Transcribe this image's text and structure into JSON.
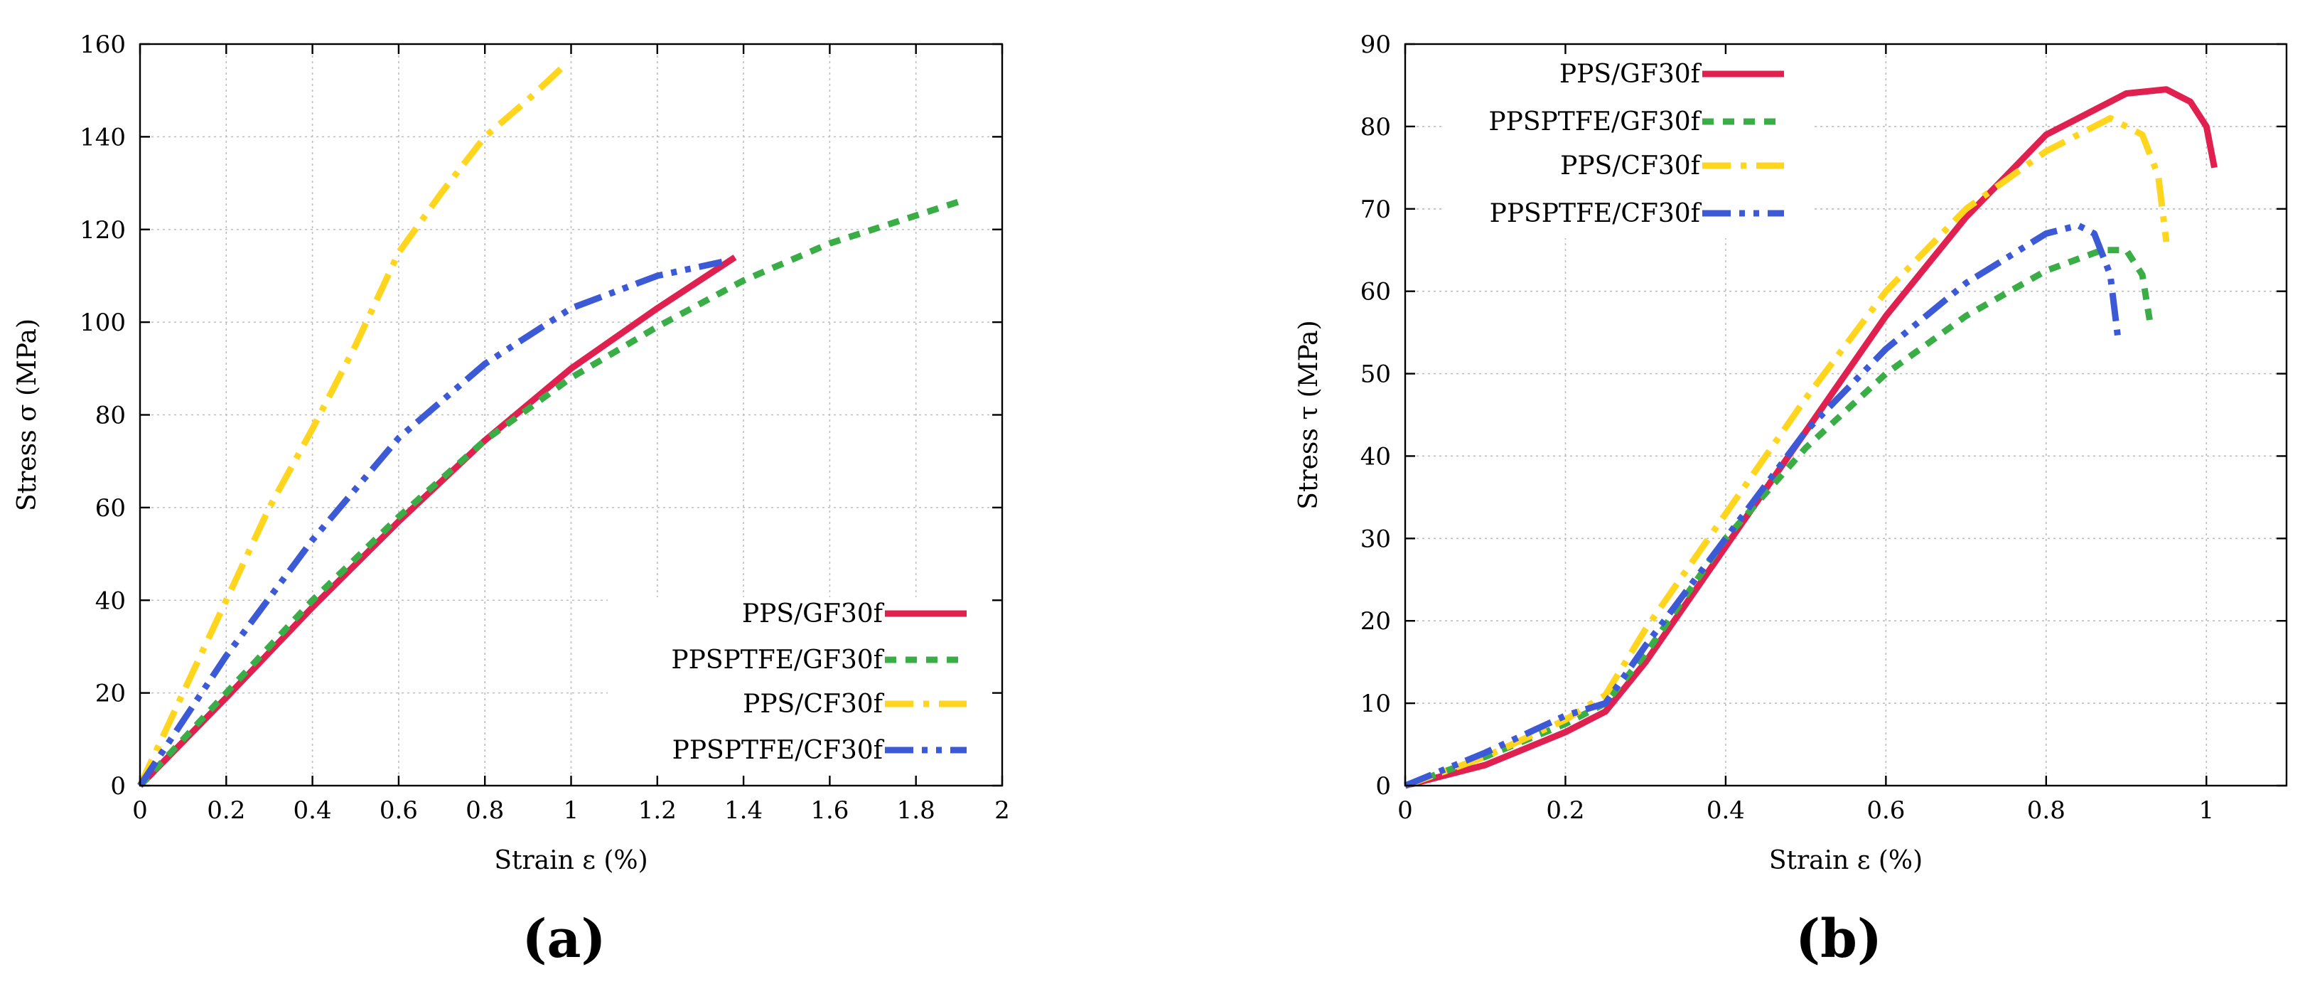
{
  "colors": {
    "red": "#e0204f",
    "green": "#3aad46",
    "yellow": "#ffd51e",
    "blue": "#3d5ad6"
  },
  "chart_data": [
    {
      "type": "line",
      "panel_label": "(a)",
      "xlabel": "Strain ε (%)",
      "ylabel": "Stress σ (MPa)",
      "xlim": [
        0,
        2
      ],
      "ylim": [
        0,
        160
      ],
      "xticks": [
        0,
        0.2,
        0.4,
        0.6,
        0.8,
        1,
        1.2,
        1.4,
        1.6,
        1.8,
        2
      ],
      "xtick_labels": [
        "0",
        "0.2",
        "0.4",
        "0.6",
        "0.8",
        "1",
        "1.2",
        "1.4",
        "1.6",
        "1.8",
        "2"
      ],
      "yticks": [
        0,
        20,
        40,
        60,
        80,
        100,
        120,
        140,
        160
      ],
      "ytick_labels": [
        "0",
        "20",
        "40",
        "60",
        "80",
        "100",
        "120",
        "140",
        "160"
      ],
      "grid": true,
      "legend_position": "bottom-right",
      "series": [
        {
          "name": "PPS/GF30f",
          "color": "#e0204f",
          "dash": "solid",
          "x": [
            0,
            0.2,
            0.4,
            0.6,
            0.8,
            1.0,
            1.2,
            1.38
          ],
          "y": [
            0,
            19,
            38.5,
            57,
            74.5,
            90,
            103,
            114
          ]
        },
        {
          "name": "PPSPTFE/GF30f",
          "color": "#3aad46",
          "dash": "dashed",
          "x": [
            0,
            0.2,
            0.4,
            0.6,
            0.8,
            1.0,
            1.2,
            1.4,
            1.6,
            1.8,
            1.9
          ],
          "y": [
            0,
            20,
            40,
            58,
            74.5,
            88,
            99,
            109,
            117,
            123,
            126
          ]
        },
        {
          "name": "PPS/CF30f",
          "color": "#ffd51e",
          "dash": "dashdot",
          "x": [
            0,
            0.1,
            0.2,
            0.3,
            0.4,
            0.5,
            0.6,
            0.7,
            0.8,
            0.9,
            0.98
          ],
          "y": [
            0,
            20,
            40,
            60,
            77,
            95,
            115,
            128,
            140,
            148,
            155
          ]
        },
        {
          "name": "PPSPTFE/CF30f",
          "color": "#3d5ad6",
          "dash": "dashdotdot",
          "x": [
            0,
            0.2,
            0.4,
            0.6,
            0.8,
            1.0,
            1.2,
            1.35
          ],
          "y": [
            0,
            28,
            53,
            75,
            91,
            103,
            110,
            113
          ]
        }
      ]
    },
    {
      "type": "line",
      "panel_label": "(b)",
      "xlabel": "Strain ε (%)",
      "ylabel": "Stress τ (MPa)",
      "xlim": [
        0,
        1.1
      ],
      "ylim": [
        0,
        90
      ],
      "xticks": [
        0,
        0.2,
        0.4,
        0.6,
        0.8,
        1
      ],
      "xtick_labels": [
        "0",
        "0.2",
        "0.4",
        "0.6",
        "0.8",
        "1"
      ],
      "yticks": [
        0,
        10,
        20,
        30,
        40,
        50,
        60,
        70,
        80,
        90
      ],
      "ytick_labels": [
        "0",
        "10",
        "20",
        "30",
        "40",
        "50",
        "60",
        "70",
        "80",
        "90"
      ],
      "grid": true,
      "legend_position": "top-left",
      "series": [
        {
          "name": "PPS/GF30f",
          "color": "#e0204f",
          "dash": "solid",
          "x": [
            0,
            0.1,
            0.2,
            0.25,
            0.3,
            0.4,
            0.5,
            0.6,
            0.7,
            0.8,
            0.9,
            0.95,
            0.98,
            1.0,
            1.01
          ],
          "y": [
            0,
            2.5,
            6.5,
            9,
            15,
            29,
            43,
            57,
            69,
            79,
            84,
            84.5,
            83,
            80,
            75
          ]
        },
        {
          "name": "PPSPTFE/GF30f",
          "color": "#3aad46",
          "dash": "dashed",
          "x": [
            0,
            0.1,
            0.2,
            0.25,
            0.3,
            0.4,
            0.5,
            0.6,
            0.7,
            0.8,
            0.87,
            0.9,
            0.92,
            0.93
          ],
          "y": [
            0,
            3.5,
            7.5,
            10,
            16,
            30,
            41,
            50,
            57,
            62.5,
            65,
            65,
            62,
            56
          ]
        },
        {
          "name": "PPS/CF30f",
          "color": "#ffd51e",
          "dash": "dashdot",
          "x": [
            0,
            0.1,
            0.2,
            0.25,
            0.3,
            0.4,
            0.5,
            0.6,
            0.7,
            0.8,
            0.88,
            0.92,
            0.94,
            0.95
          ],
          "y": [
            0,
            3.5,
            8,
            11,
            19,
            33,
            47,
            60,
            70,
            77,
            81,
            79,
            74,
            66
          ]
        },
        {
          "name": "PPSPTFE/CF30f",
          "color": "#3d5ad6",
          "dash": "dashdotdot",
          "x": [
            0,
            0.1,
            0.2,
            0.25,
            0.3,
            0.4,
            0.5,
            0.6,
            0.7,
            0.8,
            0.84,
            0.86,
            0.88,
            0.89
          ],
          "y": [
            0,
            4,
            8.5,
            10,
            17,
            30,
            43,
            53,
            61,
            67,
            68,
            67,
            62,
            54
          ]
        }
      ]
    }
  ]
}
